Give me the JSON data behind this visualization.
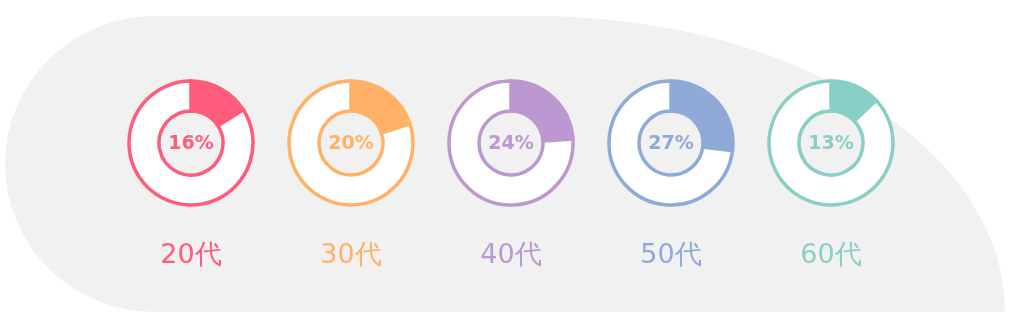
{
  "chart_data": [
    {
      "type": "donut",
      "title": "20代",
      "categories": [
        null,
        null
      ],
      "values": [
        16,
        84
      ],
      "colors": [
        "#ff5c7c",
        "#ffffff"
      ],
      "value_labels": [
        "16%",
        null
      ]
    },
    {
      "type": "donut",
      "title": "30代",
      "categories": [
        null,
        null
      ],
      "values": [
        20,
        80
      ],
      "colors": [
        "#ffb266",
        "#ffffff"
      ],
      "value_labels": [
        "20%",
        null
      ]
    },
    {
      "type": "donut",
      "title": "40代",
      "categories": [
        null,
        null
      ],
      "values": [
        24,
        76
      ],
      "colors": [
        "#bb98cf",
        "#ffffff"
      ],
      "value_labels": [
        "24%",
        null
      ]
    },
    {
      "type": "donut",
      "title": "50代",
      "categories": [
        null,
        null
      ],
      "values": [
        27,
        73
      ],
      "colors": [
        "#90aad8",
        "#ffffff"
      ],
      "value_labels": [
        "27%",
        null
      ]
    },
    {
      "type": "donut",
      "title": "60代",
      "categories": [
        null,
        null
      ],
      "values": [
        13,
        87
      ],
      "colors": [
        "#88d0c6",
        "#ffffff"
      ],
      "value_labels": [
        "13%",
        null
      ]
    }
  ]
}
